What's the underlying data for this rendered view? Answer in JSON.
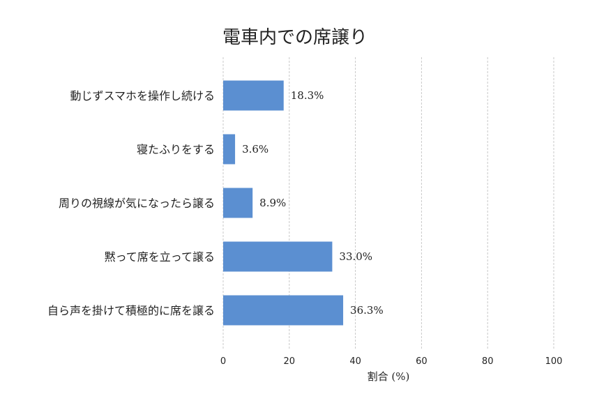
{
  "chart_data": {
    "type": "bar",
    "orientation": "horizontal",
    "title": "電車内での席譲り",
    "xlabel": "割合 (%)",
    "ylabel": "",
    "xlim": [
      0,
      100
    ],
    "x_ticks": [
      0,
      20,
      40,
      60,
      80,
      100
    ],
    "grid": "vertical-dashed",
    "categories": [
      "動じずスマホを操作し続ける",
      "寝たふりをする",
      "周りの視線が気になったら譲る",
      "黙って席を立って譲る",
      "自ら声を掛けて積極的に席を譲る"
    ],
    "values": [
      18.3,
      3.6,
      8.9,
      33.0,
      36.3
    ],
    "value_labels": [
      "18.3%",
      "3.6%",
      "8.9%",
      "33.0%",
      "36.3%"
    ],
    "bar_color": "#5b8fd1"
  }
}
